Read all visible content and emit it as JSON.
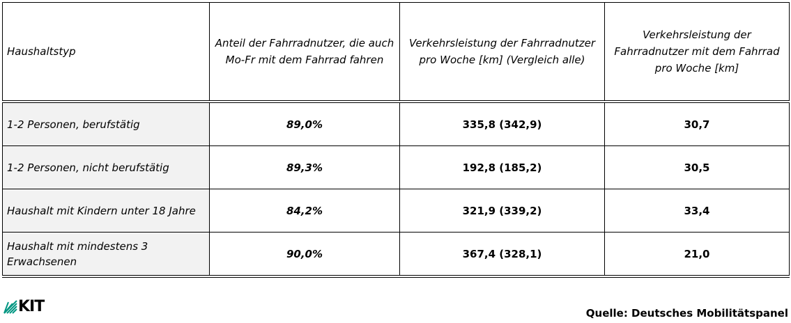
{
  "table": {
    "header": [
      "Haushaltstyp",
      "Anteil der Fahrradnutzer, die auch Mo-Fr mit dem Fahrrad fahren",
      "Verkehrsleistung der Fahrradnutzer pro Woche [km] (Vergleich alle)",
      "Verkehrsleistung der Fahrradnutzer mit dem Fahrrad pro Woche [km]"
    ],
    "rows": [
      [
        "1-2 Personen, berufstätig",
        "89,0%",
        "335,8 (342,9)",
        "30,7"
      ],
      [
        "1-2 Personen, nicht berufstätig",
        "89,3%",
        "192,8 (185,2)",
        "30,5"
      ],
      [
        "Haushalt mit Kindern unter 18 Jahre",
        "84,2%",
        "321,9 (339,2)",
        "33,4"
      ],
      [
        "Haushalt mit mindestens 3 Erwachsenen",
        "90,0%",
        "367,4 (328,1)",
        "21,0"
      ]
    ]
  },
  "footer": {
    "logo": "KIT",
    "source": "Quelle: Deutsches Mobilitätspanel"
  }
}
